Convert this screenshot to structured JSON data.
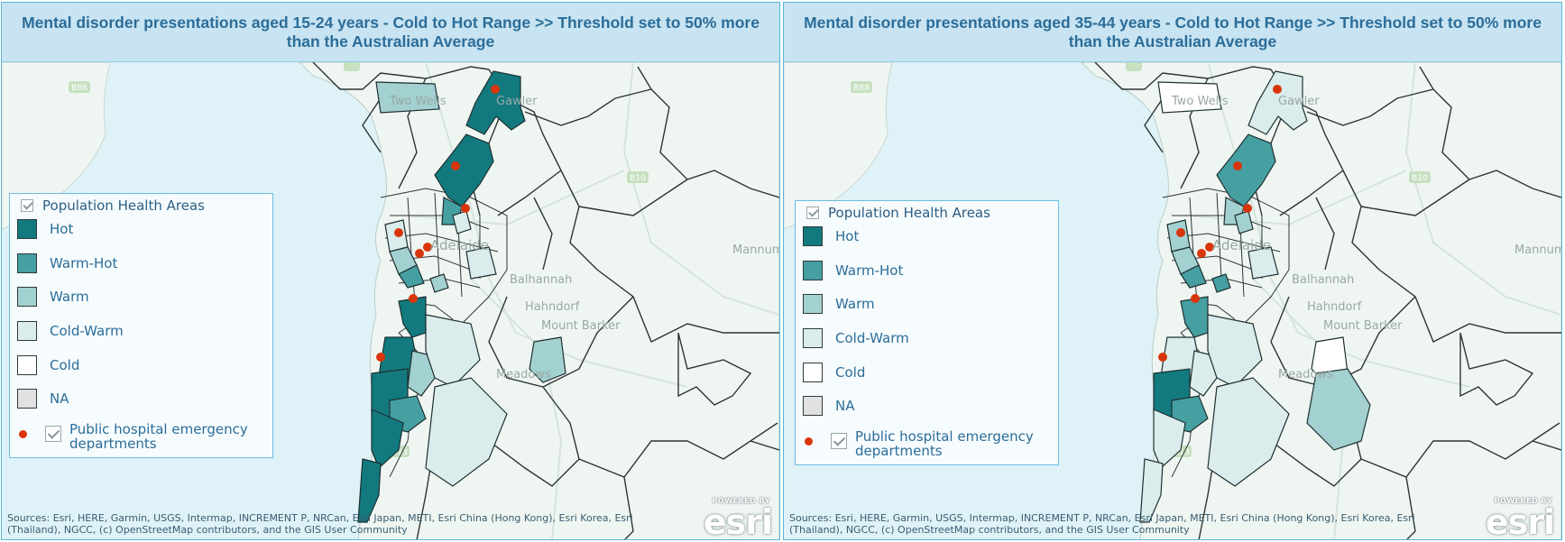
{
  "colors": {
    "hot": "#127a7e",
    "warm_hot": "#469fa1",
    "warm": "#a3d0d0",
    "cold_warm": "#daecec",
    "cold": "#ffffff",
    "na": "#e1e1e1",
    "hospital": "#d9350b",
    "sea": "#dff2f8",
    "land": "#eff6f2",
    "panel_border": "#5ab4d8",
    "title_text": "#2b6d99"
  },
  "icons": [
    "checkbox-checked-icon",
    "hospital-dot-icon",
    "esri-logo"
  ],
  "panels": [
    {
      "title": "Mental disorder presentations aged 15-24 years - Cold to Hot Range >>  Threshold set to 50% more than the Australian Average",
      "legend": {
        "layer_label": "Population Health Areas",
        "items": [
          {
            "label": "Hot",
            "class": "hot"
          },
          {
            "label": "Warm-Hot",
            "class": "warm_hot"
          },
          {
            "label": "Warm",
            "class": "warm"
          },
          {
            "label": "Cold-Warm",
            "class": "cold_warm"
          },
          {
            "label": "Cold",
            "class": "cold"
          },
          {
            "label": "NA",
            "class": "na"
          }
        ],
        "hospital_label": "Public hospital emergency departments"
      },
      "place_labels": [
        "Two Wells",
        "Gawler",
        "Adelaide",
        "Balhannah",
        "Hahndorf",
        "Mount Barker",
        "Meadows",
        "Mannum"
      ],
      "road_shields": [
        "B88",
        "A1",
        "B10",
        "A13"
      ],
      "attribution": "Sources: Esri, HERE, Garmin, USGS, Intermap, INCREMENT P, NRCan, Esri Japan, METI, Esri China (Hong Kong), Esri Korea, Esri (Thailand), NGCC, (c) OpenStreetMap contributors, and the GIS User Community",
      "powered_by": "POWERED BY",
      "esri_logo": "esri"
    },
    {
      "title": "Mental disorder presentations aged 35-44 years - Cold to Hot Range >>  Threshold set to 50% more than the Australian Average",
      "legend": {
        "layer_label": "Population Health Areas",
        "items": [
          {
            "label": "Hot",
            "class": "hot"
          },
          {
            "label": "Warm-Hot",
            "class": "warm_hot"
          },
          {
            "label": "Warm",
            "class": "warm"
          },
          {
            "label": "Cold-Warm",
            "class": "cold_warm"
          },
          {
            "label": "Cold",
            "class": "cold"
          },
          {
            "label": "NA",
            "class": "na"
          }
        ],
        "hospital_label": "Public hospital emergency departments"
      },
      "place_labels": [
        "Two Wells",
        "Gawler",
        "Adelaide",
        "Balhannah",
        "Hahndorf",
        "Mount Barker",
        "Meadows",
        "Mannum"
      ],
      "road_shields": [
        "B88",
        "A1",
        "B10",
        "A13"
      ],
      "attribution": "Sources: Esri, HERE, Garmin, USGS, Intermap, INCREMENT P, NRCan, Esri Japan, METI, Esri China (Hong Kong), Esri Korea, Esri (Thailand), NGCC, (c) OpenStreetMap contributors, and the GIS User Community",
      "powered_by": "POWERED BY",
      "esri_logo": "esri"
    }
  ]
}
